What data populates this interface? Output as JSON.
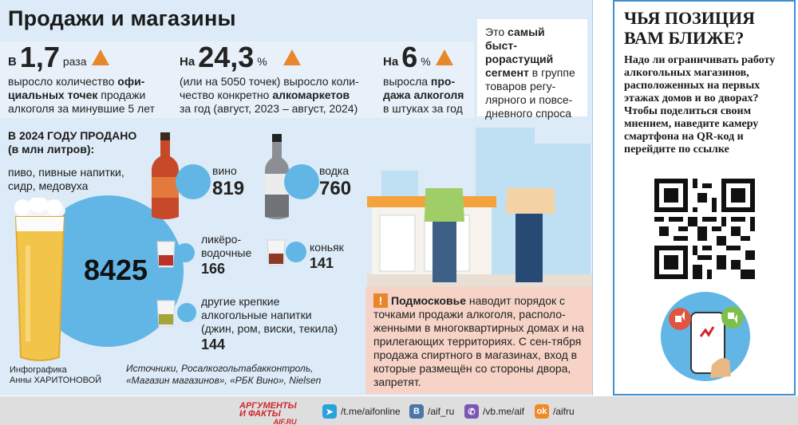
{
  "infographic": {
    "title": "Продажи и магазины",
    "stats": [
      {
        "pre": "В",
        "value": "1,7",
        "unit": "раза",
        "l1": "выросло количество ",
        "b1": "офи-",
        "l2": "",
        "b2": "циальных точек",
        "l2b": " продажи",
        "l3": "алкоголя за минувшие 5 лет"
      },
      {
        "pre": "На",
        "value": "24,3",
        "unit": "%",
        "l1": "(или на 5050 точек) выросло коли-",
        "l2": "чество конкретно ",
        "b2": "алкомаркетов",
        "l3": "за год (август, 2023 – август, 2024)"
      },
      {
        "pre": "На",
        "value": "6",
        "unit": "%",
        "l1": "выросла ",
        "b1": "про-",
        "b2": "дажа алкоголя",
        "l3": "в штуках за год"
      }
    ],
    "segment_note": {
      "l1": "Это ",
      "b1": "самый быст-",
      "b2": "рорастущий",
      "b3": "сегмент",
      "l3": " в группе",
      "l4": "товаров регу-",
      "l5": "лярного и повсе-",
      "l6": "дневного спроса"
    },
    "sold_heading": {
      "l1": "В 2024 году продано",
      "l2": "(в млн литров):"
    },
    "categories": [
      {
        "label": "пиво, пивные напитки, сидр, медовуха",
        "value": "8425"
      },
      {
        "label": "вино",
        "value": "819"
      },
      {
        "label": "водка",
        "value": "760"
      },
      {
        "label_l1": "ликёро-",
        "label_l2": "водочные",
        "value": "166"
      },
      {
        "label": "коньяк",
        "value": "141"
      },
      {
        "label_l1": "другие крепкие",
        "label_l2": "алкогольные напитки",
        "label_l3": "(джин, ром, виски, текила)",
        "value": "144"
      }
    ],
    "credit": {
      "l1": "Инфографика",
      "l2": "Анны ХАРИТОНОВОЙ"
    },
    "sources": {
      "l1": "Источники, Росалкогольтабакконтроль,",
      "l2": "«Магазин магазинов», «РБК Вино», Nielsen"
    },
    "note": {
      "mark": "!",
      "bold": "Подмосковье",
      "text": " наводит порядок с точками продажи алкоголя, располо-женными в многоквартирных домах и на прилегающих территориях. С сен-тября продажа спиртного в магазинах, вход в которые размещён со стороны двора, запретят."
    },
    "colors": {
      "accent": "#e8862a",
      "blue": "#62b6e6",
      "background": "#dcebf7",
      "note_bg": "#f6d3c6"
    }
  },
  "sidebar": {
    "title_l1": "ЧЬЯ ПОЗИЦИЯ",
    "title_l2": "ВАМ БЛИЖЕ?",
    "text": "Надо ли ограничивать работу алкогольных магазинов, расположенных на первых этажах домов и во дворах? Чтобы поделиться своим мнением, наведите камеру смартфона на QR-код и перейдите по ссылке",
    "qr_icon": "qr-code",
    "border_color": "#3f8fcf"
  },
  "footer": {
    "logo_l1": "АРГУМЕНТЫ",
    "logo_l2": "И ФАКТЫ",
    "logo_l3": "AIF.RU",
    "links": [
      {
        "icon": "telegram-icon",
        "text": "/t.me/aifonline"
      },
      {
        "icon": "vk-icon",
        "text": "/aif_ru"
      },
      {
        "icon": "viber-icon",
        "text": "/vb.me/aif"
      },
      {
        "icon": "ok-icon",
        "text": "/aifru"
      }
    ]
  }
}
